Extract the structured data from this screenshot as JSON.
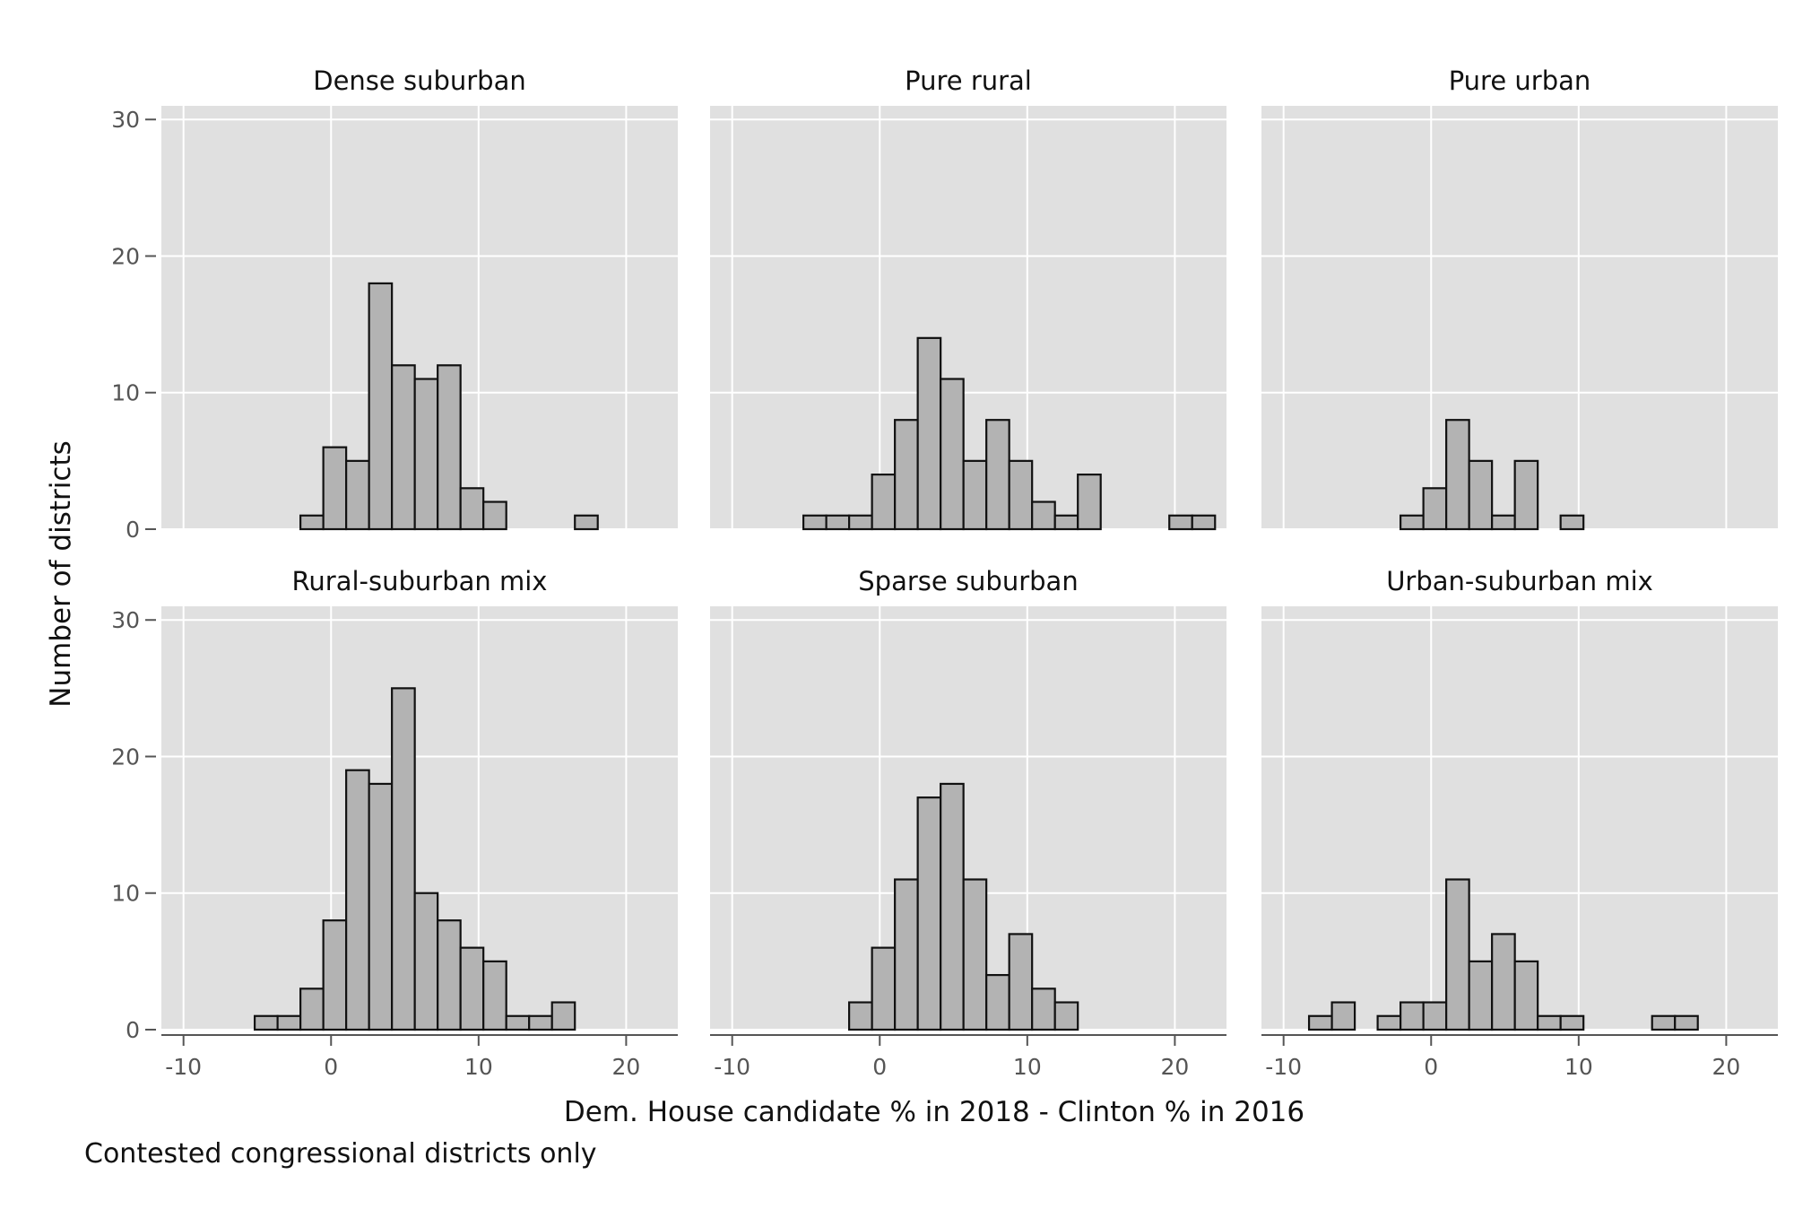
{
  "chart_data": {
    "type": "bar",
    "xlabel": "Dem. House candidate % in 2018 - Clinton % in 2016",
    "ylabel": "Number of districts",
    "caption": "Contested congressional districts only",
    "xlim": [
      -11.5,
      23.5
    ],
    "ylim": [
      0,
      31
    ],
    "xticks": [
      -10,
      0,
      10,
      20
    ],
    "xtick_labels": [
      "-10",
      "0",
      "10",
      "20"
    ],
    "yticks": [
      0,
      10,
      20,
      30
    ],
    "ytick_labels": [
      "0",
      "10",
      "20",
      "30"
    ],
    "bin_width": 1.55,
    "grid": true,
    "colors": {
      "panel_bg": "#e0e0e0",
      "bar_fill": "#b3b3b3",
      "bar_stroke": "#111111",
      "grid": "#ffffff"
    },
    "panels": [
      {
        "title": "Dense suburban",
        "bars": [
          {
            "x": -1.3,
            "count": 1
          },
          {
            "x": 0.25,
            "count": 6
          },
          {
            "x": 1.8,
            "count": 5
          },
          {
            "x": 3.35,
            "count": 18
          },
          {
            "x": 4.9,
            "count": 12
          },
          {
            "x": 6.45,
            "count": 11
          },
          {
            "x": 8.0,
            "count": 12
          },
          {
            "x": 9.55,
            "count": 3
          },
          {
            "x": 11.1,
            "count": 2
          },
          {
            "x": 17.3,
            "count": 1
          }
        ]
      },
      {
        "title": "Pure rural",
        "bars": [
          {
            "x": -4.4,
            "count": 1
          },
          {
            "x": -2.85,
            "count": 1
          },
          {
            "x": -1.3,
            "count": 1
          },
          {
            "x": 0.25,
            "count": 4
          },
          {
            "x": 1.8,
            "count": 8
          },
          {
            "x": 3.35,
            "count": 14
          },
          {
            "x": 4.9,
            "count": 11
          },
          {
            "x": 6.45,
            "count": 5
          },
          {
            "x": 8.0,
            "count": 8
          },
          {
            "x": 9.55,
            "count": 5
          },
          {
            "x": 11.1,
            "count": 2
          },
          {
            "x": 12.65,
            "count": 1
          },
          {
            "x": 14.2,
            "count": 4
          },
          {
            "x": 20.4,
            "count": 1
          },
          {
            "x": 21.95,
            "count": 1
          }
        ]
      },
      {
        "title": "Pure urban",
        "bars": [
          {
            "x": -1.3,
            "count": 1
          },
          {
            "x": 0.25,
            "count": 3
          },
          {
            "x": 1.8,
            "count": 8
          },
          {
            "x": 3.35,
            "count": 5
          },
          {
            "x": 4.9,
            "count": 1
          },
          {
            "x": 6.45,
            "count": 5
          },
          {
            "x": 9.55,
            "count": 1
          }
        ]
      },
      {
        "title": "Rural-suburban mix",
        "bars": [
          {
            "x": -4.4,
            "count": 1
          },
          {
            "x": -2.85,
            "count": 1
          },
          {
            "x": -1.3,
            "count": 3
          },
          {
            "x": 0.25,
            "count": 8
          },
          {
            "x": 1.8,
            "count": 19
          },
          {
            "x": 3.35,
            "count": 18
          },
          {
            "x": 4.9,
            "count": 25
          },
          {
            "x": 6.45,
            "count": 10
          },
          {
            "x": 8.0,
            "count": 8
          },
          {
            "x": 9.55,
            "count": 6
          },
          {
            "x": 11.1,
            "count": 5
          },
          {
            "x": 12.65,
            "count": 1
          },
          {
            "x": 14.2,
            "count": 1
          },
          {
            "x": 15.75,
            "count": 2
          }
        ]
      },
      {
        "title": "Sparse suburban",
        "bars": [
          {
            "x": -1.3,
            "count": 2
          },
          {
            "x": 0.25,
            "count": 6
          },
          {
            "x": 1.8,
            "count": 11
          },
          {
            "x": 3.35,
            "count": 17
          },
          {
            "x": 4.9,
            "count": 18
          },
          {
            "x": 6.45,
            "count": 11
          },
          {
            "x": 8.0,
            "count": 4
          },
          {
            "x": 9.55,
            "count": 7
          },
          {
            "x": 11.1,
            "count": 3
          },
          {
            "x": 12.65,
            "count": 2
          }
        ]
      },
      {
        "title": "Urban-suburban mix",
        "bars": [
          {
            "x": -7.5,
            "count": 1
          },
          {
            "x": -5.95,
            "count": 2
          },
          {
            "x": -2.85,
            "count": 1
          },
          {
            "x": -1.3,
            "count": 2
          },
          {
            "x": 0.25,
            "count": 2
          },
          {
            "x": 1.8,
            "count": 11
          },
          {
            "x": 3.35,
            "count": 5
          },
          {
            "x": 4.9,
            "count": 7
          },
          {
            "x": 6.45,
            "count": 5
          },
          {
            "x": 8.0,
            "count": 1
          },
          {
            "x": 9.55,
            "count": 1
          },
          {
            "x": 15.75,
            "count": 1
          },
          {
            "x": 17.3,
            "count": 1
          }
        ]
      }
    ]
  }
}
